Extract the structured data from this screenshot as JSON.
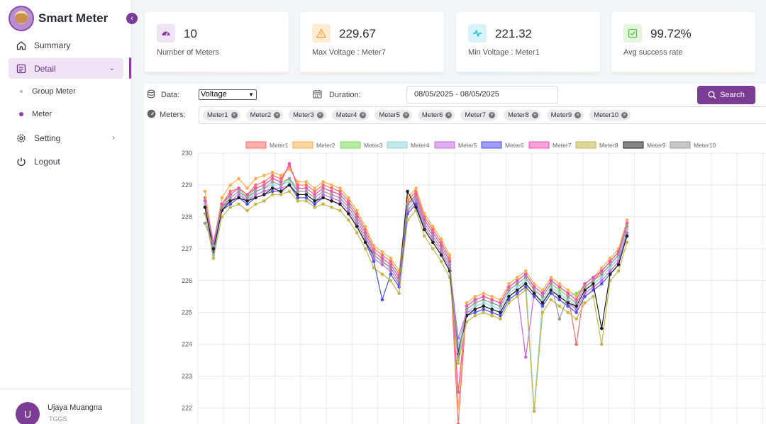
{
  "app": {
    "title": "Smart Meter"
  },
  "sidebar": {
    "items": [
      {
        "label": "Summary"
      },
      {
        "label": "Detail"
      },
      {
        "label": "Setting"
      },
      {
        "label": "Logout"
      }
    ],
    "sub_items": [
      {
        "label": "Group Meter"
      },
      {
        "label": "Meter"
      }
    ]
  },
  "user": {
    "initial": "U",
    "name": "Ujaya Muangna",
    "org": "TGGS"
  },
  "stats": [
    {
      "value": "10",
      "label": "Number of Meters",
      "color": "#8a3fae"
    },
    {
      "value": "229.67",
      "label": "Max Voltage : Meter7",
      "color": "#f2a23b"
    },
    {
      "value": "221.32",
      "label": "Min Voltage : Meter1",
      "color": "#1fb6d9"
    },
    {
      "value": "99.72%",
      "label": "Avg success rate",
      "color": "#5cbf4a"
    }
  ],
  "filters": {
    "data_label": "Data:",
    "data_value": "Voltage",
    "duration_label": "Duration:",
    "duration_value": "08/05/2025 - 08/05/2025",
    "meters_label": "Meters:",
    "search_label": "Search",
    "meters": [
      "Meter1",
      "Meter2",
      "Meter3",
      "Meter4",
      "Meter5",
      "Meter6",
      "Meter7",
      "Meter8",
      "Meter9",
      "Meter10"
    ]
  },
  "chart_data": {
    "type": "line",
    "ylim": [
      221.5,
      230
    ],
    "yticks": [
      222,
      223,
      224,
      225,
      226,
      227,
      228,
      229,
      230
    ],
    "grid": true,
    "legend": "top",
    "series": [
      {
        "name": "Meter1",
        "color": "#ff6b6b",
        "values": [
          228.6,
          227.0,
          228.4,
          228.8,
          228.9,
          228.7,
          229.0,
          229.1,
          229.3,
          229.2,
          229.6,
          229.0,
          229.0,
          228.8,
          229.0,
          228.9,
          228.8,
          228.5,
          228.1,
          227.6,
          227.0,
          226.8,
          226.6,
          226.2,
          228.5,
          228.8,
          228.0,
          227.6,
          227.2,
          226.7,
          221.5,
          225.2,
          225.4,
          225.5,
          225.4,
          225.3,
          225.8,
          226.0,
          226.2,
          225.8,
          225.6,
          226.0,
          225.8,
          225.6,
          224.0,
          225.8,
          226.0,
          226.3,
          226.6,
          226.9,
          227.8
        ]
      },
      {
        "name": "Meter2",
        "color": "#f6b14e",
        "values": [
          228.8,
          227.1,
          228.6,
          229.0,
          229.2,
          228.9,
          229.2,
          229.3,
          229.4,
          229.3,
          229.5,
          229.1,
          229.1,
          228.9,
          229.1,
          229.0,
          228.9,
          228.6,
          228.2,
          227.7,
          227.1,
          226.9,
          226.7,
          226.3,
          228.6,
          228.9,
          228.1,
          227.7,
          227.3,
          226.8,
          222.0,
          225.3,
          225.5,
          225.6,
          225.5,
          225.4,
          225.9,
          226.1,
          226.3,
          225.9,
          225.7,
          226.1,
          225.9,
          225.7,
          225.5,
          225.9,
          226.1,
          226.4,
          226.7,
          227.0,
          227.9
        ]
      },
      {
        "name": "Meter3",
        "color": "#7fd957",
        "values": [
          228.5,
          226.9,
          228.3,
          228.7,
          228.9,
          228.6,
          228.9,
          229.0,
          229.2,
          229.1,
          229.2,
          228.9,
          228.9,
          228.7,
          228.9,
          228.8,
          228.7,
          228.4,
          228.0,
          227.5,
          226.9,
          226.7,
          226.5,
          226.1,
          228.4,
          228.7,
          227.9,
          227.5,
          227.1,
          226.6,
          223.5,
          225.1,
          225.3,
          225.4,
          225.3,
          225.2,
          225.7,
          225.9,
          226.1,
          225.7,
          225.5,
          225.9,
          225.7,
          225.5,
          225.6,
          225.8,
          226.0,
          226.2,
          226.5,
          226.8,
          227.7
        ]
      },
      {
        "name": "Meter4",
        "color": "#8fd6d8",
        "values": [
          228.4,
          226.8,
          228.2,
          228.6,
          228.8,
          228.5,
          228.8,
          228.9,
          229.0,
          229.0,
          229.1,
          228.8,
          228.8,
          228.6,
          228.8,
          228.7,
          228.6,
          228.3,
          227.9,
          227.4,
          226.8,
          226.6,
          226.4,
          226.0,
          228.3,
          228.6,
          227.8,
          227.4,
          227.0,
          226.5,
          224.0,
          225.0,
          225.2,
          225.3,
          225.2,
          225.1,
          225.6,
          225.8,
          226.0,
          222.0,
          225.4,
          225.8,
          225.6,
          225.4,
          225.2,
          225.7,
          225.9,
          226.1,
          226.4,
          226.7,
          227.6
        ]
      },
      {
        "name": "Meter5",
        "color": "#c26be0",
        "values": [
          228.3,
          226.9,
          228.3,
          228.5,
          228.7,
          228.5,
          228.7,
          228.8,
          228.9,
          228.9,
          229.0,
          228.7,
          228.7,
          228.5,
          228.7,
          228.6,
          228.5,
          228.2,
          227.8,
          227.3,
          226.7,
          226.5,
          226.3,
          225.9,
          228.2,
          228.5,
          227.7,
          227.3,
          226.9,
          226.4,
          224.2,
          225.0,
          225.1,
          225.2,
          225.1,
          225.0,
          225.5,
          225.7,
          223.6,
          225.6,
          225.3,
          225.7,
          225.5,
          225.3,
          225.1,
          225.6,
          225.8,
          226.0,
          226.3,
          226.6,
          227.5
        ]
      },
      {
        "name": "Meter6",
        "color": "#4f4ff0",
        "values": [
          228.3,
          226.9,
          228.2,
          228.4,
          228.6,
          228.4,
          228.6,
          228.7,
          228.8,
          228.8,
          229.0,
          228.6,
          228.6,
          228.4,
          228.6,
          228.5,
          228.4,
          228.1,
          227.7,
          227.2,
          226.6,
          225.4,
          226.2,
          225.8,
          228.1,
          228.4,
          227.6,
          227.2,
          226.8,
          226.3,
          223.8,
          224.9,
          225.0,
          225.1,
          225.0,
          224.9,
          225.4,
          225.6,
          225.8,
          225.5,
          225.2,
          225.6,
          225.4,
          225.2,
          225.0,
          225.5,
          225.7,
          225.9,
          226.2,
          226.5,
          227.4
        ]
      },
      {
        "name": "Meter7",
        "color": "#f24fb8",
        "values": [
          228.5,
          227.2,
          228.4,
          228.7,
          228.9,
          228.7,
          228.9,
          229.0,
          229.2,
          229.1,
          229.67,
          228.9,
          228.9,
          228.7,
          228.9,
          228.8,
          228.7,
          228.4,
          228.0,
          227.5,
          226.9,
          226.7,
          226.5,
          226.1,
          228.4,
          228.7,
          227.9,
          227.5,
          227.1,
          226.6,
          222.5,
          225.2,
          225.4,
          225.5,
          225.4,
          225.3,
          225.8,
          226.0,
          226.2,
          225.8,
          225.6,
          226.0,
          225.8,
          225.6,
          225.4,
          225.9,
          226.1,
          226.3,
          226.6,
          226.9,
          227.8
        ]
      },
      {
        "name": "Meter8",
        "color": "#c3b64a",
        "values": [
          228.1,
          226.7,
          228.0,
          228.3,
          228.4,
          228.2,
          228.4,
          228.5,
          228.7,
          228.7,
          228.8,
          228.5,
          228.5,
          228.3,
          228.4,
          228.3,
          228.2,
          227.9,
          227.5,
          227.0,
          226.4,
          226.2,
          226.0,
          225.6,
          227.9,
          228.2,
          227.4,
          227.0,
          226.6,
          226.1,
          223.4,
          224.7,
          224.9,
          225.0,
          224.9,
          224.8,
          225.3,
          225.5,
          225.7,
          221.9,
          225.0,
          225.4,
          225.2,
          225.0,
          224.8,
          225.3,
          225.5,
          224.0,
          226.0,
          226.3,
          227.2
        ]
      },
      {
        "name": "Meter9",
        "color": "#222222",
        "values": [
          228.3,
          227.0,
          228.2,
          228.5,
          228.6,
          228.5,
          228.6,
          228.7,
          228.9,
          228.8,
          229.0,
          228.7,
          228.7,
          228.5,
          228.6,
          228.5,
          228.4,
          228.1,
          227.7,
          227.2,
          226.8,
          226.6,
          226.4,
          226.0,
          228.8,
          228.3,
          227.6,
          227.2,
          226.8,
          226.3,
          223.7,
          224.9,
          225.1,
          225.2,
          225.1,
          225.0,
          225.5,
          225.7,
          225.9,
          225.6,
          225.3,
          225.7,
          225.5,
          225.3,
          225.2,
          225.7,
          225.9,
          224.5,
          226.2,
          226.5,
          227.4
        ]
      },
      {
        "name": "Meter10",
        "color": "#999999",
        "values": [
          227.8,
          227.1,
          228.3,
          228.6,
          228.8,
          228.6,
          228.8,
          228.9,
          229.1,
          229.0,
          229.2,
          228.8,
          228.8,
          228.6,
          228.8,
          228.7,
          228.6,
          228.3,
          227.9,
          227.4,
          226.8,
          226.6,
          226.4,
          226.0,
          228.4,
          228.6,
          227.8,
          227.4,
          227.0,
          226.5,
          223.6,
          225.1,
          225.3,
          225.4,
          225.3,
          225.2,
          225.7,
          225.9,
          226.1,
          225.7,
          225.5,
          225.9,
          224.8,
          225.5,
          225.3,
          225.8,
          226.0,
          226.2,
          226.5,
          226.8,
          227.7
        ]
      }
    ]
  }
}
